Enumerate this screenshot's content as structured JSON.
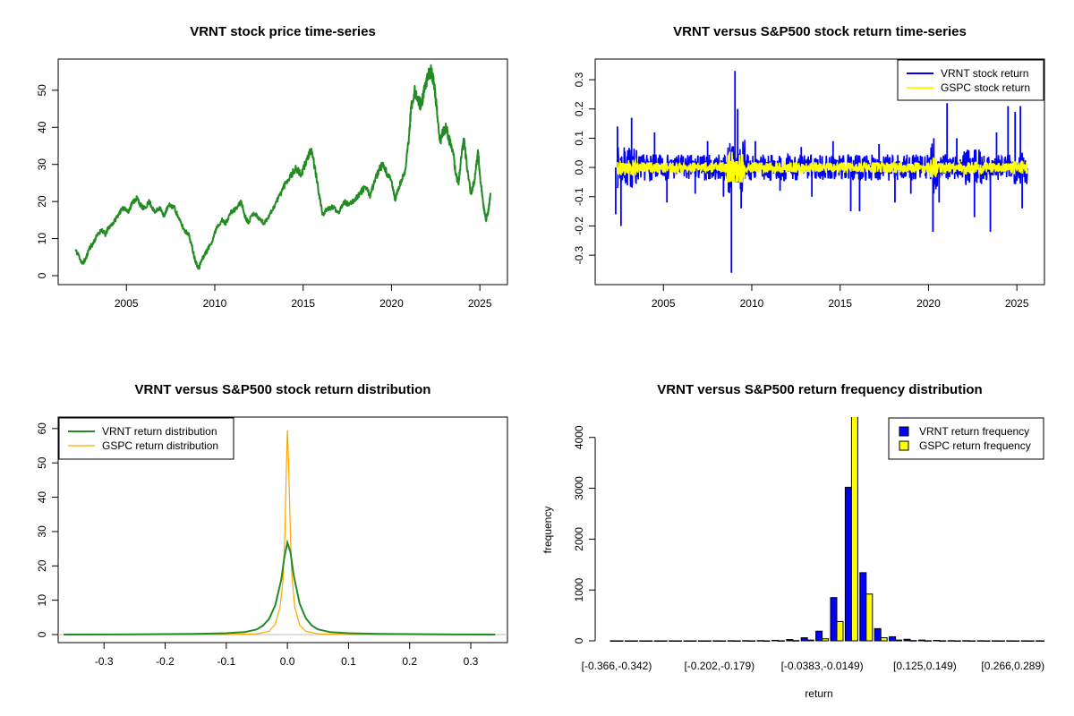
{
  "chart_data": [
    {
      "type": "line",
      "title": "VRNT stock price time-series",
      "xlabel": "",
      "ylabel": "",
      "xlim": [
        2002.0,
        2025.7
      ],
      "ylim": [
        0,
        56
      ],
      "x_ticks": [
        "2005",
        "2010",
        "2015",
        "2020",
        "2025"
      ],
      "y_ticks": [
        "0",
        "10",
        "20",
        "30",
        "40",
        "50"
      ],
      "series": [
        {
          "color": "#228B22",
          "points": [
            [
              2002.1,
              7.0
            ],
            [
              2002.3,
              5.5
            ],
            [
              2002.5,
              3.2
            ],
            [
              2002.7,
              4.5
            ],
            [
              2002.9,
              7.5
            ],
            [
              2003.1,
              8.5
            ],
            [
              2003.3,
              10.5
            ],
            [
              2003.6,
              12.5
            ],
            [
              2003.8,
              11.0
            ],
            [
              2004.0,
              13.0
            ],
            [
              2004.3,
              14.5
            ],
            [
              2004.6,
              17.0
            ],
            [
              2004.9,
              18.5
            ],
            [
              2005.1,
              17.0
            ],
            [
              2005.3,
              19.5
            ],
            [
              2005.6,
              21.0
            ],
            [
              2005.8,
              19.0
            ],
            [
              2006.0,
              18.0
            ],
            [
              2006.3,
              20.0
            ],
            [
              2006.6,
              17.0
            ],
            [
              2006.9,
              18.5
            ],
            [
              2007.1,
              16.0
            ],
            [
              2007.4,
              19.0
            ],
            [
              2007.7,
              18.5
            ],
            [
              2008.0,
              15.0
            ],
            [
              2008.3,
              12.0
            ],
            [
              2008.5,
              11.5
            ],
            [
              2008.7,
              8.0
            ],
            [
              2008.9,
              4.0
            ],
            [
              2009.1,
              2.0
            ],
            [
              2009.2,
              3.5
            ],
            [
              2009.4,
              5.5
            ],
            [
              2009.6,
              7.0
            ],
            [
              2009.9,
              10.0
            ],
            [
              2010.1,
              13.0
            ],
            [
              2010.4,
              15.0
            ],
            [
              2010.6,
              14.0
            ],
            [
              2010.9,
              17.0
            ],
            [
              2011.2,
              18.0
            ],
            [
              2011.5,
              20.0
            ],
            [
              2011.7,
              16.0
            ],
            [
              2011.9,
              14.5
            ],
            [
              2012.2,
              17.0
            ],
            [
              2012.5,
              15.5
            ],
            [
              2012.8,
              14.0
            ],
            [
              2013.1,
              16.5
            ],
            [
              2013.4,
              19.0
            ],
            [
              2013.7,
              22.0
            ],
            [
              2014.0,
              25.0
            ],
            [
              2014.3,
              27.0
            ],
            [
              2014.6,
              29.0
            ],
            [
              2014.9,
              27.0
            ],
            [
              2015.1,
              30.0
            ],
            [
              2015.3,
              32.5
            ],
            [
              2015.5,
              33.5
            ],
            [
              2015.7,
              28.0
            ],
            [
              2015.9,
              22.0
            ],
            [
              2016.1,
              16.5
            ],
            [
              2016.4,
              18.0
            ],
            [
              2016.7,
              18.5
            ],
            [
              2017.0,
              17.0
            ],
            [
              2017.3,
              20.0
            ],
            [
              2017.6,
              19.0
            ],
            [
              2017.9,
              20.5
            ],
            [
              2018.2,
              22.0
            ],
            [
              2018.5,
              24.0
            ],
            [
              2018.8,
              21.5
            ],
            [
              2019.0,
              25.0
            ],
            [
              2019.3,
              28.5
            ],
            [
              2019.5,
              30.0
            ],
            [
              2019.8,
              27.0
            ],
            [
              2020.0,
              25.5
            ],
            [
              2020.2,
              20.5
            ],
            [
              2020.4,
              23.5
            ],
            [
              2020.6,
              26.0
            ],
            [
              2020.8,
              29.0
            ],
            [
              2021.0,
              38.0
            ],
            [
              2021.1,
              45.0
            ],
            [
              2021.3,
              50.0
            ],
            [
              2021.5,
              47.0
            ],
            [
              2021.7,
              46.0
            ],
            [
              2021.9,
              51.0
            ],
            [
              2022.1,
              54.0
            ],
            [
              2022.25,
              55.5
            ],
            [
              2022.4,
              52.0
            ],
            [
              2022.6,
              43.0
            ],
            [
              2022.75,
              36.0
            ],
            [
              2022.9,
              38.5
            ],
            [
              2023.1,
              40.0
            ],
            [
              2023.3,
              36.0
            ],
            [
              2023.5,
              32.5
            ],
            [
              2023.65,
              27.0
            ],
            [
              2023.8,
              25.0
            ],
            [
              2023.9,
              30.0
            ],
            [
              2024.1,
              37.0
            ],
            [
              2024.3,
              28.0
            ],
            [
              2024.5,
              22.0
            ],
            [
              2024.7,
              26.0
            ],
            [
              2024.9,
              33.5
            ],
            [
              2025.0,
              27.0
            ],
            [
              2025.2,
              19.0
            ],
            [
              2025.35,
              15.0
            ],
            [
              2025.5,
              18.0
            ],
            [
              2025.6,
              22.0
            ]
          ]
        }
      ]
    },
    {
      "type": "line",
      "title": "VRNT versus S&P500 stock return time-series",
      "xlabel": "",
      "ylabel": "",
      "xlim": [
        2002.0,
        2025.7
      ],
      "ylim": [
        -0.37,
        0.34
      ],
      "x_ticks": [
        "2005",
        "2010",
        "2015",
        "2020",
        "2025"
      ],
      "y_ticks": [
        "-0.3",
        "-0.2",
        "-0.1",
        "0.0",
        "0.1",
        "0.2",
        "0.3"
      ],
      "legend_position": "top-right",
      "series": [
        {
          "name": "VRNT stock return",
          "color": "#0000FF",
          "spikes": [
            [
              2002.3,
              -0.16
            ],
            [
              2002.4,
              0.14
            ],
            [
              2002.6,
              -0.2
            ],
            [
              2003.2,
              0.17
            ],
            [
              2004.5,
              0.12
            ],
            [
              2005.2,
              -0.12
            ],
            [
              2006.8,
              -0.09
            ],
            [
              2007.5,
              0.09
            ],
            [
              2008.4,
              -0.1
            ],
            [
              2008.85,
              -0.36
            ],
            [
              2009.05,
              0.33
            ],
            [
              2009.2,
              0.2
            ],
            [
              2009.4,
              -0.14
            ],
            [
              2010.2,
              0.09
            ],
            [
              2011.6,
              -0.08
            ],
            [
              2012.8,
              0.07
            ],
            [
              2013.4,
              -0.1
            ],
            [
              2014.6,
              0.09
            ],
            [
              2015.6,
              -0.15
            ],
            [
              2016.1,
              -0.15
            ],
            [
              2017.2,
              0.08
            ],
            [
              2018.1,
              -0.12
            ],
            [
              2019.0,
              -0.09
            ],
            [
              2020.25,
              -0.22
            ],
            [
              2020.3,
              0.1
            ],
            [
              2020.6,
              -0.12
            ],
            [
              2021.05,
              0.22
            ],
            [
              2021.6,
              0.1
            ],
            [
              2022.6,
              -0.17
            ],
            [
              2023.5,
              -0.22
            ],
            [
              2023.85,
              0.12
            ],
            [
              2024.5,
              0.21
            ],
            [
              2024.9,
              0.19
            ],
            [
              2025.2,
              0.21
            ],
            [
              2025.3,
              -0.14
            ]
          ]
        },
        {
          "name": "GSPC stock return",
          "color": "#FFFF00"
        }
      ]
    },
    {
      "type": "line",
      "title": "VRNT versus S&P500 stock return distribution",
      "xlabel": "",
      "ylabel": "",
      "xlim": [
        -0.375,
        0.36
      ],
      "ylim": [
        0,
        61
      ],
      "x_ticks": [
        "-0.3",
        "-0.2",
        "-0.1",
        "0.0",
        "0.1",
        "0.2",
        "0.3"
      ],
      "y_ticks": [
        "0",
        "10",
        "20",
        "30",
        "40",
        "50",
        "60"
      ],
      "legend_position": "top-left",
      "series": [
        {
          "name": "VRNT return distribution",
          "color": "#228B22",
          "points": [
            [
              -0.366,
              0
            ],
            [
              -0.25,
              0.05
            ],
            [
              -0.15,
              0.2
            ],
            [
              -0.1,
              0.4
            ],
            [
              -0.07,
              0.7
            ],
            [
              -0.05,
              1.5
            ],
            [
              -0.04,
              2.6
            ],
            [
              -0.03,
              4.5
            ],
            [
              -0.02,
              8.5
            ],
            [
              -0.01,
              16.0
            ],
            [
              -0.005,
              22.5
            ],
            [
              0.0,
              26.8
            ],
            [
              0.005,
              24.0
            ],
            [
              0.01,
              17.5
            ],
            [
              0.02,
              9.0
            ],
            [
              0.03,
              4.8
            ],
            [
              0.04,
              2.6
            ],
            [
              0.05,
              1.5
            ],
            [
              0.07,
              0.7
            ],
            [
              0.1,
              0.4
            ],
            [
              0.15,
              0.2
            ],
            [
              0.25,
              0.05
            ],
            [
              0.34,
              0
            ]
          ]
        },
        {
          "name": "GSPC return distribution",
          "color": "#FFA500",
          "points": [
            [
              -0.366,
              0
            ],
            [
              -0.1,
              0
            ],
            [
              -0.05,
              0.2
            ],
            [
              -0.03,
              0.9
            ],
            [
              -0.02,
              3.0
            ],
            [
              -0.012,
              8.0
            ],
            [
              -0.007,
              16.0
            ],
            [
              -0.004,
              30.0
            ],
            [
              -0.002,
              47.0
            ],
            [
              0.0,
              59.5
            ],
            [
              0.002,
              50.0
            ],
            [
              0.004,
              35.0
            ],
            [
              0.007,
              18.0
            ],
            [
              0.012,
              8.0
            ],
            [
              0.02,
              2.8
            ],
            [
              0.03,
              0.9
            ],
            [
              0.05,
              0.2
            ],
            [
              0.1,
              0
            ],
            [
              0.34,
              0
            ]
          ]
        }
      ]
    },
    {
      "type": "bar",
      "title": "VRNT versus S&P500 return frequency distribution",
      "xlabel": "return",
      "ylabel": "frequency",
      "ylim": [
        0,
        4400
      ],
      "y_ticks": [
        "0",
        "1000",
        "2000",
        "3000",
        "4000"
      ],
      "x_tick_labels": [
        "[-0.366,-0.342)",
        "[-0.202,-0.179)",
        "[-0.0383,-0.0149)",
        "[0.125,0.149)",
        "[0.266,0.289)"
      ],
      "x_tick_bins": [
        0,
        7,
        14,
        21,
        27
      ],
      "legend_position": "top-right",
      "series": [
        {
          "name": "VRNT return frequency",
          "color": "#0000FF",
          "values": [
            1,
            0,
            0,
            0,
            0,
            0,
            0,
            1,
            2,
            3,
            5,
            10,
            25,
            60,
            190,
            850,
            3020,
            1340,
            240,
            80,
            30,
            15,
            8,
            4,
            3,
            2,
            1,
            1,
            1,
            1
          ]
        },
        {
          "name": "GSPC return frequency",
          "color": "#FFFF00",
          "values": [
            0,
            0,
            0,
            0,
            0,
            0,
            0,
            0,
            0,
            0,
            0,
            2,
            5,
            15,
            40,
            380,
            4550,
            920,
            60,
            15,
            5,
            2,
            1,
            0,
            0,
            0,
            0,
            0,
            0,
            0
          ]
        }
      ]
    }
  ]
}
